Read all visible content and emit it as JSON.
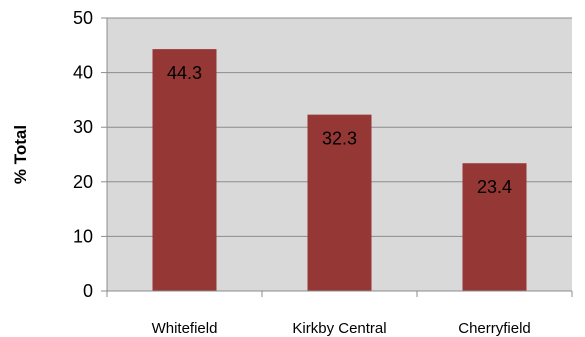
{
  "chart_data": {
    "type": "bar",
    "title": "",
    "xlabel": "",
    "ylabel": "% Total",
    "categories": [
      "Whitefield",
      "Kirkby Central",
      "Cherryfield"
    ],
    "values": [
      44.3,
      32.3,
      23.4
    ],
    "data_labels": [
      "44.3",
      "32.3",
      "23.4"
    ],
    "ylim": [
      0,
      50
    ],
    "yticks": [
      "0",
      "10",
      "20",
      "30",
      "40",
      "50"
    ],
    "grid": true,
    "legend": "none",
    "colors": {
      "bar": "#953735",
      "plot_background": "#d9d9d9",
      "gridline": "#8c8c8c",
      "axis": "#8c8c8c"
    }
  }
}
